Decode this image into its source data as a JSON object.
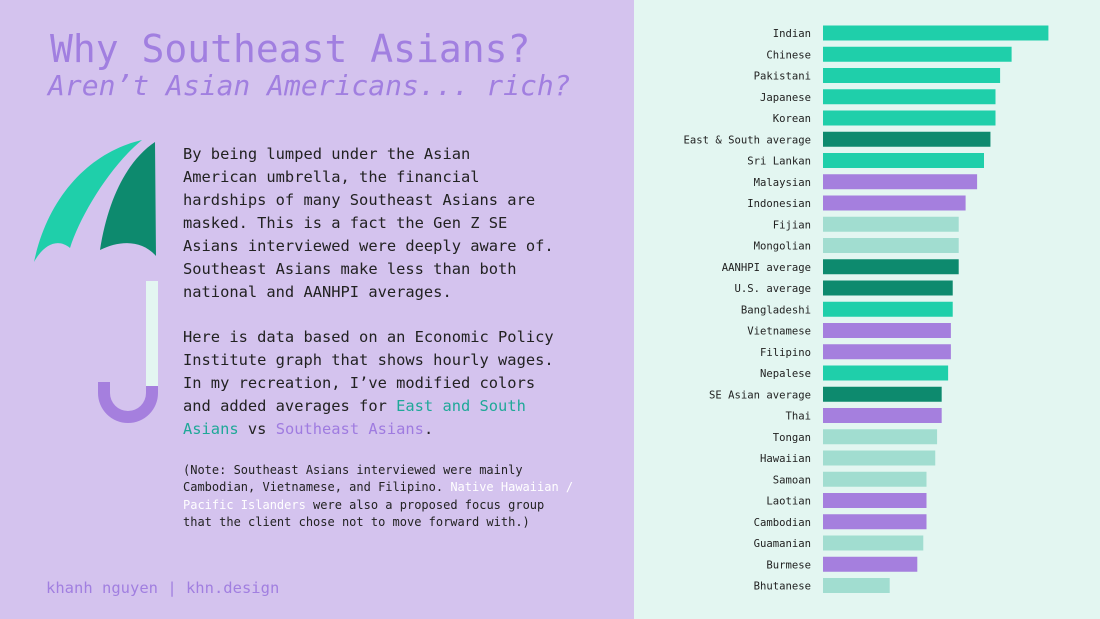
{
  "heading": {
    "title": "Why Southeast Asians?",
    "subtitle": "Aren’t Asian Americans... rich?"
  },
  "body": {
    "paragraph1_lines": [
      "By being lumped under the Asian",
      "American umbrella, the financial",
      "hardships of many Southeast Asians are",
      "masked. This is a fact the Gen Z SE",
      "Asians interviewed were deeply aware of.",
      "Southeast Asians make less than both",
      "national and AANHPI averages."
    ],
    "paragraph2": {
      "line1": "Here is data based on an Economic Policy",
      "line2": "Institute graph that shows hourly wages.",
      "line3": "In my recreation, I’ve modified colors",
      "line4_prefix": "and added averages for ",
      "east_south_part1": "East and South",
      "east_south_part2": "Asians",
      "vs_text": " vs ",
      "southeast_text": "Southeast Asians",
      "end_period": "."
    },
    "note": {
      "line1": "(Note: Southeast Asians interviewed were mainly",
      "line2_prefix": "Cambodian, Vietnamese, and Filipino. ",
      "nhpi_part1": "Native Hawaiian /",
      "nhpi_part2": "Pacific Islanders",
      "line3_suffix": " were also a proposed focus group",
      "line4": "that the client chose not to move forward with.)"
    }
  },
  "footer": "khanh nguyen | khn.design",
  "colors": {
    "left_background": "#d4c3ee",
    "right_background": "#e3f6f1",
    "east_south_asian": "#1fcfaa",
    "average": "#0d8a6e",
    "southeast_asian": "#a57fde",
    "nhpi": "#a1ddd0",
    "title_purple": "#a17fe0",
    "highlight_teal": "#1fa898"
  },
  "umbrella": {
    "icon": "umbrella-icon"
  },
  "chart_data": {
    "type": "bar",
    "orientation": "horizontal",
    "title": "",
    "xlabel": "",
    "ylabel": "",
    "grid": false,
    "legend": false,
    "xlim": [
      0,
      50
    ],
    "categories": [
      "Indian",
      "Chinese",
      "Pakistani",
      "Japanese",
      "Korean",
      "East & South average",
      "Sri Lankan",
      "Malaysian",
      "Indonesian",
      "Fijian",
      "Mongolian",
      "AANHPI average",
      "U.S. average",
      "Bangladeshi",
      "Vietnamese",
      "Filipino",
      "Nepalese",
      "SE Asian average",
      "Thai",
      "Tongan",
      "Hawaiian",
      "Samoan",
      "Laotian",
      "Cambodian",
      "Guamanian",
      "Burmese",
      "Bhutanese"
    ],
    "values": [
      49.0,
      41.0,
      38.5,
      37.5,
      37.5,
      36.4,
      35.0,
      33.5,
      31.0,
      29.5,
      29.5,
      29.5,
      28.2,
      28.2,
      27.8,
      27.8,
      27.2,
      25.8,
      25.8,
      24.8,
      24.4,
      22.5,
      22.5,
      22.5,
      21.8,
      20.5,
      14.5
    ],
    "groups": [
      "east_south",
      "east_south",
      "east_south",
      "east_south",
      "east_south",
      "average",
      "east_south",
      "southeast",
      "southeast",
      "nhpi",
      "nhpi",
      "average",
      "average",
      "east_south",
      "southeast",
      "southeast",
      "east_south",
      "average",
      "southeast",
      "nhpi",
      "nhpi",
      "nhpi",
      "southeast",
      "southeast",
      "nhpi",
      "southeast",
      "nhpi"
    ]
  }
}
